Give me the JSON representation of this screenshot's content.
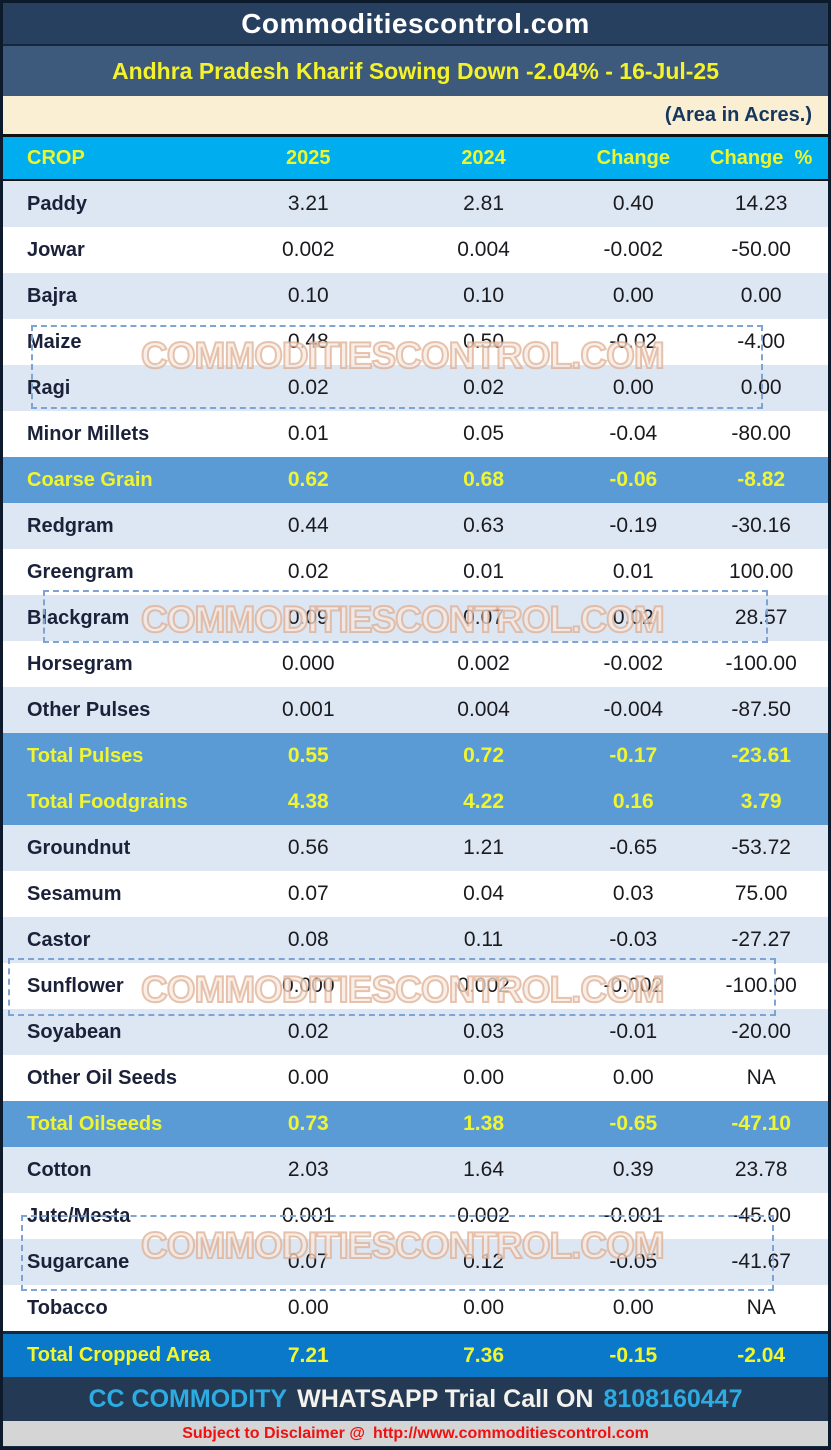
{
  "page": {
    "site_title": "Commoditiescontrol.com",
    "report_title": "Andhra Pradesh Kharif Sowing Down -2.04% - 16-Jul-25",
    "unit_note": "(Area in Acres.)"
  },
  "table": {
    "columns": [
      "CROP",
      "2025",
      "2024",
      "Change",
      "Change  %"
    ],
    "rows": [
      {
        "crop": "Paddy",
        "y2025": "3.21",
        "y2024": "2.81",
        "change": "0.40",
        "change_pct": "14.23",
        "style": "alt"
      },
      {
        "crop": "Jowar",
        "y2025": "0.002",
        "y2024": "0.004",
        "change": "-0.002",
        "change_pct": "-50.00",
        "style": "plain"
      },
      {
        "crop": "Bajra",
        "y2025": "0.10",
        "y2024": "0.10",
        "change": "0.00",
        "change_pct": "0.00",
        "style": "alt"
      },
      {
        "crop": "Maize",
        "y2025": "0.48",
        "y2024": "0.50",
        "change": "-0.02",
        "change_pct": "-4.00",
        "style": "plain"
      },
      {
        "crop": "Ragi",
        "y2025": "0.02",
        "y2024": "0.02",
        "change": "0.00",
        "change_pct": "0.00",
        "style": "alt"
      },
      {
        "crop": "Minor Millets",
        "y2025": "0.01",
        "y2024": "0.05",
        "change": "-0.04",
        "change_pct": "-80.00",
        "style": "plain"
      },
      {
        "crop": "Coarse Grain",
        "y2025": "0.62",
        "y2024": "0.68",
        "change": "-0.06",
        "change_pct": "-8.82",
        "style": "subtotal"
      },
      {
        "crop": "Redgram",
        "y2025": "0.44",
        "y2024": "0.63",
        "change": "-0.19",
        "change_pct": "-30.16",
        "style": "alt"
      },
      {
        "crop": "Greengram",
        "y2025": "0.02",
        "y2024": "0.01",
        "change": "0.01",
        "change_pct": "100.00",
        "style": "plain"
      },
      {
        "crop": "Blackgram",
        "y2025": "0.09",
        "y2024": "0.07",
        "change": "0.02",
        "change_pct": "28.57",
        "style": "alt"
      },
      {
        "crop": "Horsegram",
        "y2025": "0.000",
        "y2024": "0.002",
        "change": "-0.002",
        "change_pct": "-100.00",
        "style": "plain"
      },
      {
        "crop": "Other Pulses",
        "y2025": "0.001",
        "y2024": "0.004",
        "change": "-0.004",
        "change_pct": "-87.50",
        "style": "alt"
      },
      {
        "crop": "Total Pulses",
        "y2025": "0.55",
        "y2024": "0.72",
        "change": "-0.17",
        "change_pct": "-23.61",
        "style": "subtotal"
      },
      {
        "crop": "Total Foodgrains",
        "y2025": "4.38",
        "y2024": "4.22",
        "change": "0.16",
        "change_pct": "3.79",
        "style": "subtotal"
      },
      {
        "crop": "Groundnut",
        "y2025": "0.56",
        "y2024": "1.21",
        "change": "-0.65",
        "change_pct": "-53.72",
        "style": "alt"
      },
      {
        "crop": "Sesamum",
        "y2025": "0.07",
        "y2024": "0.04",
        "change": "0.03",
        "change_pct": "75.00",
        "style": "plain"
      },
      {
        "crop": "Castor",
        "y2025": "0.08",
        "y2024": "0.11",
        "change": "-0.03",
        "change_pct": "-27.27",
        "style": "alt"
      },
      {
        "crop": "Sunflower",
        "y2025": "0.000",
        "y2024": "0.002",
        "change": "-0.002",
        "change_pct": "-100.00",
        "style": "plain"
      },
      {
        "crop": "Soyabean",
        "y2025": "0.02",
        "y2024": "0.03",
        "change": "-0.01",
        "change_pct": "-20.00",
        "style": "alt"
      },
      {
        "crop": "Other Oil Seeds",
        "y2025": "0.00",
        "y2024": "0.00",
        "change": "0.00",
        "change_pct": "NA",
        "style": "plain"
      },
      {
        "crop": "Total Oilseeds",
        "y2025": "0.73",
        "y2024": "1.38",
        "change": "-0.65",
        "change_pct": "-47.10",
        "style": "subtotal"
      },
      {
        "crop": "Cotton",
        "y2025": "2.03",
        "y2024": "1.64",
        "change": "0.39",
        "change_pct": "23.78",
        "style": "alt"
      },
      {
        "crop": "Jute/Mesta",
        "y2025": "0.001",
        "y2024": "0.002",
        "change": "-0.001",
        "change_pct": "-45.00",
        "style": "plain"
      },
      {
        "crop": "Sugarcane",
        "y2025": "0.07",
        "y2024": "0.12",
        "change": "-0.05",
        "change_pct": "-41.67",
        "style": "alt"
      },
      {
        "crop": "Tobacco",
        "y2025": "0.00",
        "y2024": "0.00",
        "change": "0.00",
        "change_pct": "NA",
        "style": "plain"
      },
      {
        "crop": "Total Cropped Area",
        "y2025": "7.21",
        "y2024": "7.36",
        "change": "-0.15",
        "change_pct": "-2.04",
        "style": "grandtotal"
      }
    ]
  },
  "watermark": {
    "text": "COMMODITIESCONTROL.COM"
  },
  "footer": {
    "brand": "CC COMMODITY",
    "message": "WHATSAPP Trial Call ON",
    "phone": "8108160447",
    "disclaimer_prefix": "Subject to Disclaimer @",
    "disclaimer_url": "http://www.commoditiescontrol.com"
  },
  "colors": {
    "header_navy": "#27405F",
    "subtitle_blue": "#3D5A7C",
    "note_cream": "#FAEFD3",
    "column_header_cyan": "#00AEEF",
    "accent_yellow": "#F2F62C",
    "row_light_blue": "#DCE7F3",
    "row_white": "#FFFFFF",
    "subtotal_blue": "#5B9BD5",
    "grand_total_blue": "#0B79C9",
    "footer_navy": "#243A54",
    "footer_cyan": "#2CACE3",
    "disclaimer_red": "#EE1111",
    "disclaimer_gray": "#D5D5D5"
  }
}
